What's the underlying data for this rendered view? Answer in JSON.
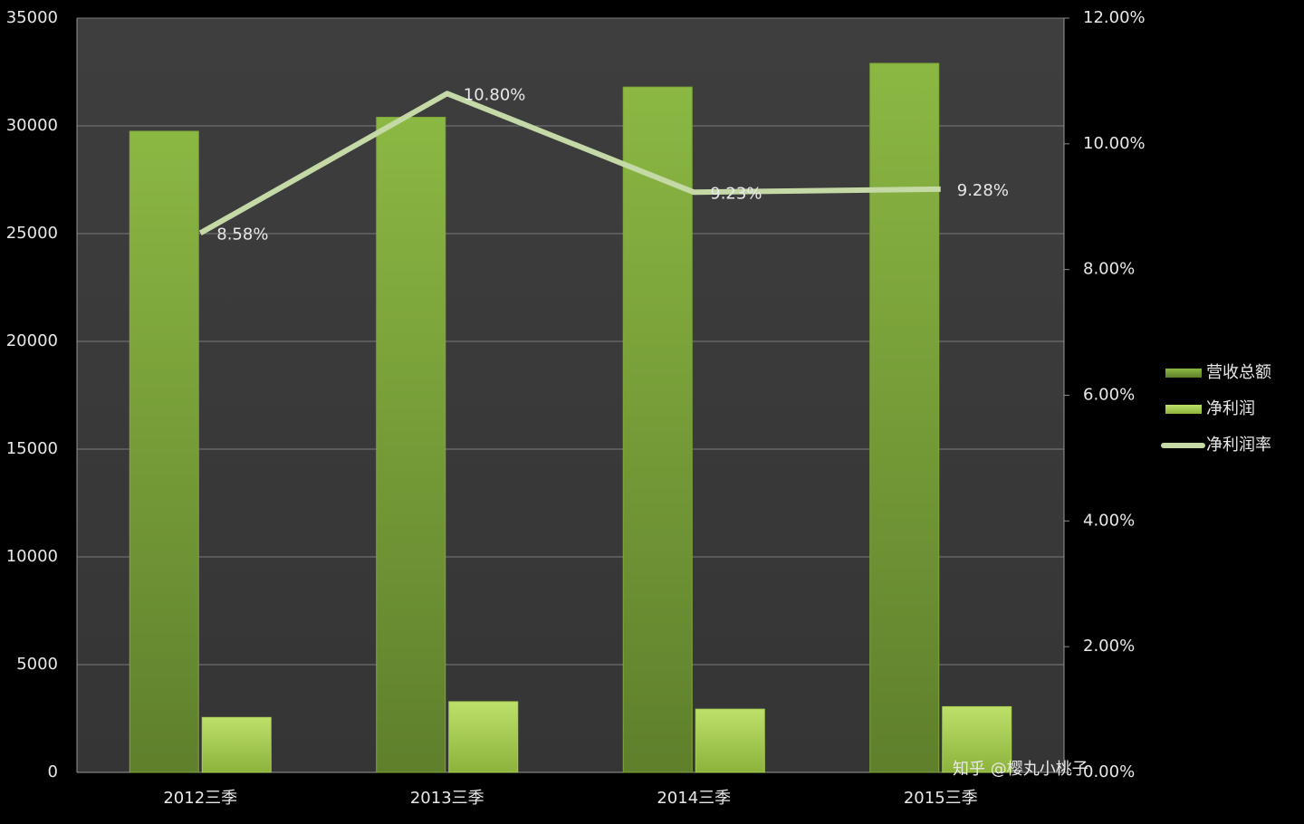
{
  "chart_data": {
    "type": "bar",
    "categories": [
      "2012三季",
      "2013三季",
      "2014三季",
      "2015三季"
    ],
    "series": [
      {
        "name": "营收总额",
        "type": "bar",
        "color": "#7fa838",
        "values": [
          29750,
          30400,
          31800,
          32900
        ]
      },
      {
        "name": "净利润",
        "type": "bar",
        "color": "#a8cf52",
        "values": [
          2550,
          3280,
          2935,
          3050
        ]
      },
      {
        "name": "净利润率",
        "type": "line",
        "axis": "y2",
        "color": "#c4d9a6",
        "values": [
          8.58,
          10.8,
          9.23,
          9.28
        ],
        "value_labels": [
          "8.58%",
          "10.80%",
          "9.23%",
          "9.28%"
        ]
      }
    ],
    "ylim": [
      0,
      35000
    ],
    "yticks": [
      0,
      5000,
      10000,
      15000,
      20000,
      25000,
      30000,
      35000
    ],
    "y2lim": [
      0,
      12
    ],
    "y2ticks": [
      {
        "value": 0,
        "label": "0.00%"
      },
      {
        "value": 2,
        "label": "2.00%"
      },
      {
        "value": 4,
        "label": "4.00%"
      },
      {
        "value": 6,
        "label": "6.00%"
      },
      {
        "value": 8,
        "label": "8.00%"
      },
      {
        "value": 10,
        "label": "10.00%"
      },
      {
        "value": 12,
        "label": "12.00%"
      }
    ],
    "grid": true,
    "legend": "right",
    "watermark": "知乎 @樱丸小桃子"
  }
}
